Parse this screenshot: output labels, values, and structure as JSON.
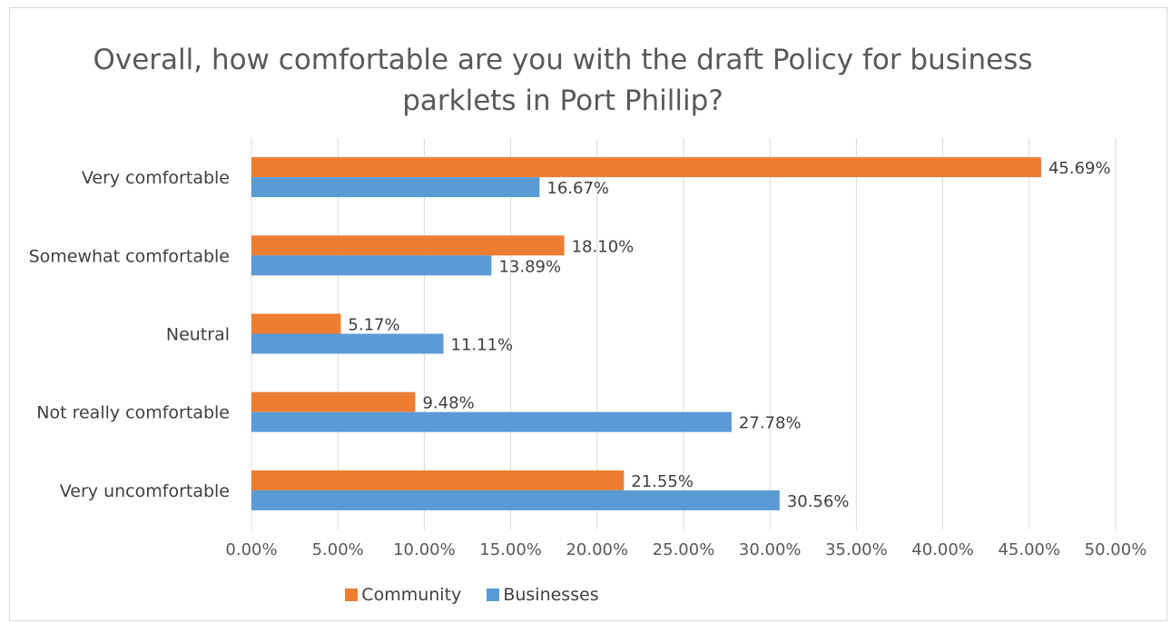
{
  "chart_data": {
    "type": "bar",
    "orientation": "horizontal",
    "title_lines": [
      "Overall, how comfortable are you with the draft Policy for business",
      "parklets in Port Phillip?"
    ],
    "categories": [
      "Very comfortable",
      "Somewhat comfortable",
      "Neutral",
      "Not really comfortable",
      "Very uncomfortable"
    ],
    "series": [
      {
        "name": "Community",
        "color": "#ed7d31",
        "values": [
          45.69,
          18.1,
          5.17,
          9.48,
          21.55
        ],
        "labels": [
          "45.69%",
          "18.10%",
          "5.17%",
          "9.48%",
          "21.55%"
        ]
      },
      {
        "name": "Businesses",
        "color": "#5b9bd5",
        "values": [
          16.67,
          13.89,
          11.11,
          27.78,
          30.56
        ],
        "labels": [
          "16.67%",
          "13.89%",
          "11.11%",
          "27.78%",
          "30.56%"
        ]
      }
    ],
    "xlim": [
      0,
      50
    ],
    "x_ticks": [
      "0.00%",
      "5.00%",
      "10.00%",
      "15.00%",
      "20.00%",
      "25.00%",
      "30.00%",
      "35.00%",
      "40.00%",
      "45.00%",
      "50.00%"
    ],
    "grid": true,
    "legend_position": "bottom",
    "gridline_color": "#d9d9d9"
  }
}
